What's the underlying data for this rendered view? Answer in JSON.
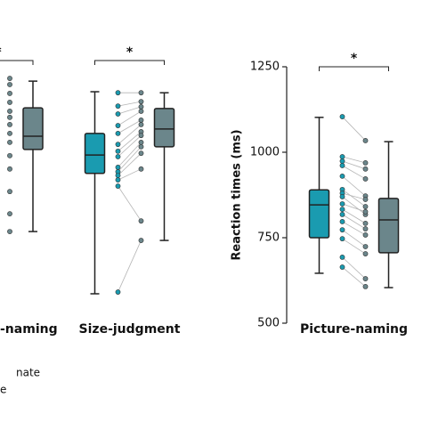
{
  "chart_data": [
    {
      "type": "box",
      "title": "-naming",
      "significance": "*",
      "ylim": [
        500,
        1250
      ],
      "series": [
        {
          "color": "#6b868b",
          "box": {
            "min": 768,
            "q1": 1008,
            "median": 1047,
            "q3": 1130,
            "max": 1208
          },
          "points": [
            1216,
            1198,
            1172,
            1146,
            1120,
            1102,
            1081,
            1055,
            1029,
            990,
            951,
            885,
            820,
            768
          ]
        }
      ]
    },
    {
      "type": "box",
      "title": "Size-judgment",
      "significance": "*",
      "ylim": [
        500,
        1250
      ],
      "series": [
        {
          "color": "#1a9bb0",
          "box": {
            "min": 586,
            "q1": 938,
            "median": 992,
            "q3": 1055,
            "max": 1177
          },
          "points": [
            1174,
            1135,
            1112,
            1078,
            1055,
            1023,
            1003,
            987,
            956,
            943,
            932,
            919,
            901,
            591
          ]
        },
        {
          "color": "#6b868b",
          "box": {
            "min": 742,
            "q1": 1016,
            "median": 1068,
            "q3": 1128,
            "max": 1174
          },
          "points": [
            1174,
            1148,
            1133,
            1120,
            1094,
            1081,
            1060,
            1049,
            1029,
            1016,
            997,
            951,
            799,
            742
          ]
        }
      ]
    },
    {
      "type": "box",
      "title": "Picture-naming",
      "significance": "*",
      "ylabel": "Reaction times (ms)",
      "ylim": [
        500,
        1250
      ],
      "yticks": [
        500,
        750,
        1000,
        1250
      ],
      "series": [
        {
          "name": "nate",
          "color": "#1a9bb0",
          "box": {
            "min": 646,
            "q1": 750,
            "median": 846,
            "q3": 890,
            "max": 1102
          },
          "points": [
            1104,
            987,
            974,
            961,
            930,
            891,
            880,
            870,
            849,
            833,
            818,
            797,
            773,
            747,
            693,
            664
          ]
        },
        {
          "name": "e",
          "color": "#6b868b",
          "box": {
            "min": 604,
            "q1": 706,
            "median": 802,
            "q3": 865,
            "max": 1031
          },
          "points": [
            1034,
            969,
            951,
            922,
            872,
            841,
            862,
            818,
            826,
            792,
            776,
            758,
            724,
            703,
            630,
            607
          ]
        }
      ]
    }
  ]
}
